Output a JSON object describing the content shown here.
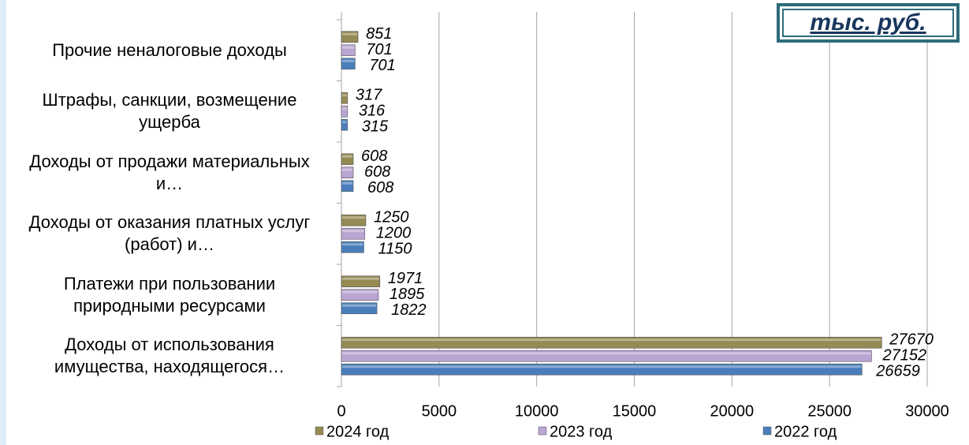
{
  "chart_data": {
    "type": "barh",
    "annotation": "тыс. руб.",
    "categories": [
      "Прочие неналоговые доходы",
      "Штрафы, санкции, возмещение ущерба",
      "Доходы от продажи материальных и…",
      "Доходы от оказания платных услуг (работ) и…",
      "Платежи при пользовании природными ресурсами",
      "Доходы от использования имущества, находящегося…"
    ],
    "series": [
      {
        "name": "2024 год",
        "color": "#948a54",
        "values": [
          851,
          317,
          608,
          1250,
          1971,
          27670
        ]
      },
      {
        "name": "2023 год",
        "color": "#b9a4d2",
        "values": [
          701,
          316,
          608,
          1200,
          1895,
          27152
        ]
      },
      {
        "name": "2022 год",
        "color": "#4a7ebb",
        "values": [
          701,
          315,
          608,
          1150,
          1822,
          26659
        ]
      }
    ],
    "xlim": [
      0,
      30000
    ],
    "xticks": [
      0,
      5000,
      10000,
      15000,
      20000,
      25000,
      30000
    ],
    "grid": true,
    "legend": "bottom"
  }
}
